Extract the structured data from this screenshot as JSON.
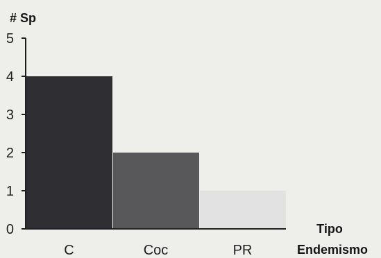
{
  "chart_data": {
    "type": "bar",
    "categories": [
      "C",
      "Coc",
      "PR"
    ],
    "values": [
      4,
      2,
      1
    ],
    "bar_colors": [
      "#2f2f33",
      "#58585b",
      "#e2e2e2"
    ],
    "ylabel": "# Sp",
    "xlabel_line1": "Tipo",
    "xlabel_line2": "Endemismo",
    "ylim": [
      0,
      5
    ],
    "yticks": [
      "0",
      "1",
      "2",
      "3",
      "4",
      "5"
    ],
    "grid": false,
    "legend": "none"
  }
}
